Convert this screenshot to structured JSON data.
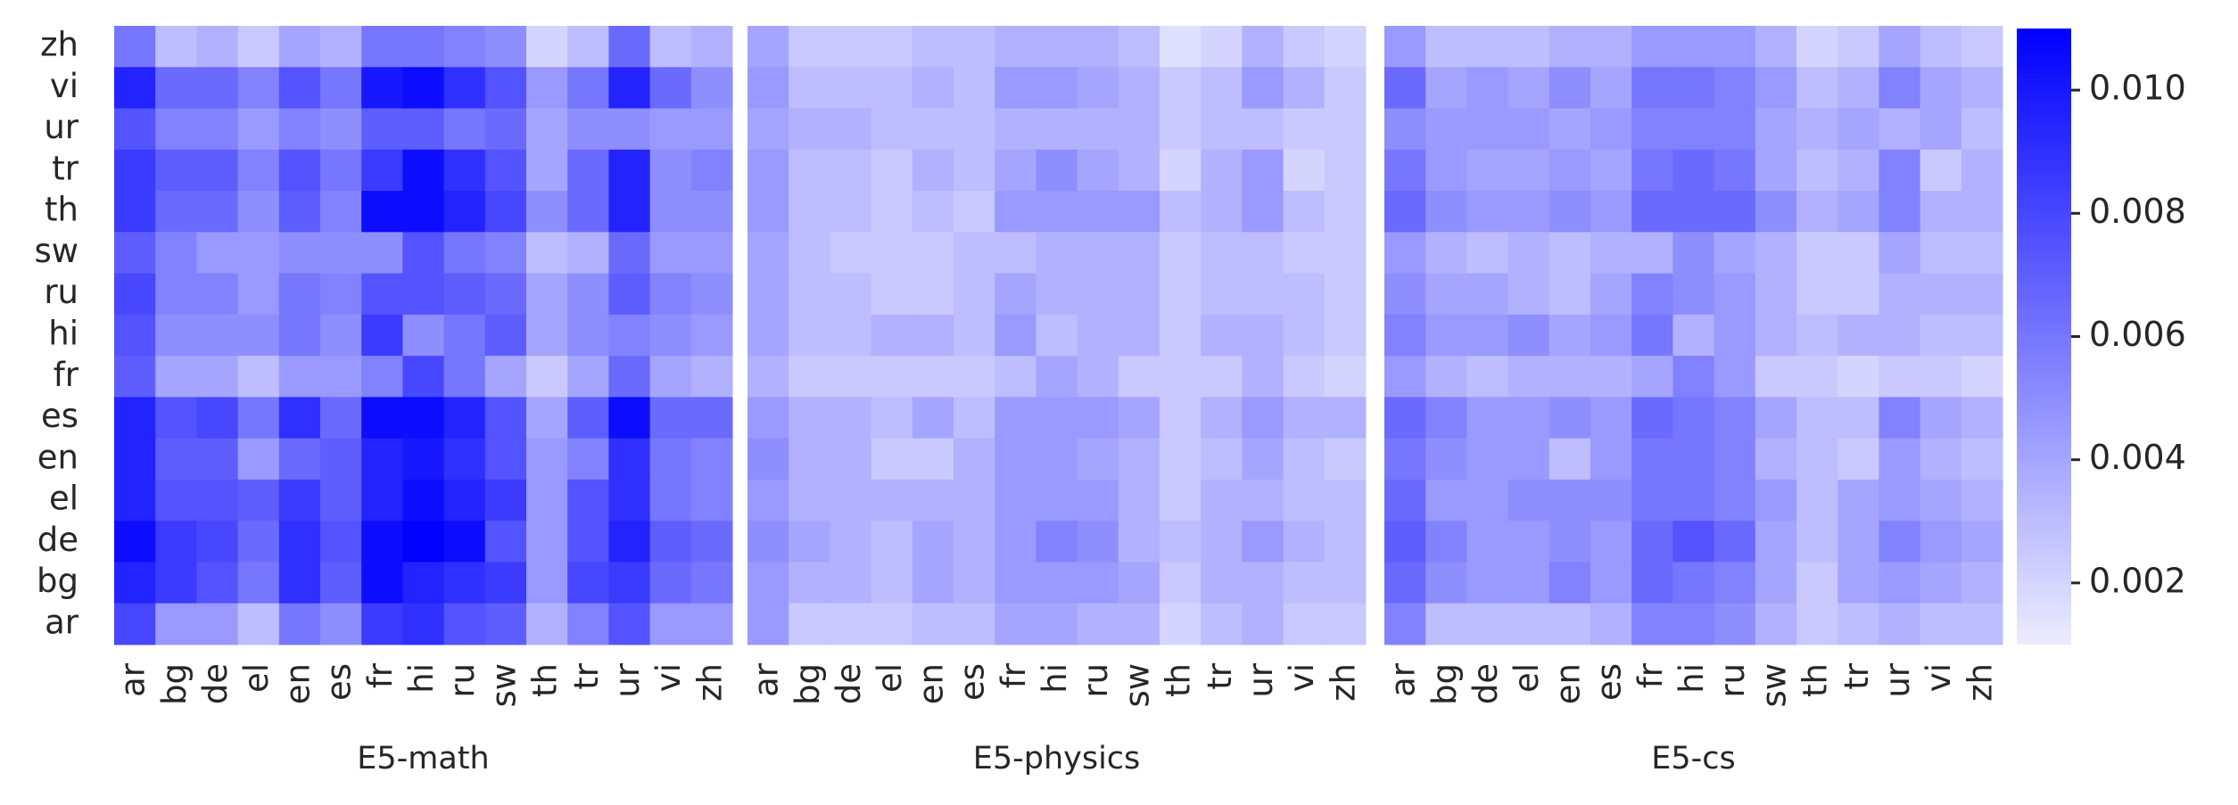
{
  "chart_data": [
    {
      "type": "heatmap",
      "x_label": "E5-math",
      "x": [
        "ar",
        "bg",
        "de",
        "el",
        "en",
        "es",
        "fr",
        "hi",
        "ru",
        "sw",
        "th",
        "tr",
        "ur",
        "vi",
        "zh"
      ],
      "y": [
        "zh",
        "vi",
        "ur",
        "tr",
        "th",
        "sw",
        "ru",
        "hi",
        "fr",
        "es",
        "en",
        "el",
        "de",
        "bg",
        "ar"
      ],
      "values": [
        [
          0.006,
          0.003,
          0.0035,
          0.0025,
          0.004,
          0.0035,
          0.006,
          0.006,
          0.0055,
          0.005,
          0.002,
          0.003,
          0.0065,
          0.003,
          0.0035
        ],
        [
          0.0095,
          0.0065,
          0.0065,
          0.0055,
          0.0075,
          0.006,
          0.01,
          0.0105,
          0.009,
          0.0075,
          0.0045,
          0.006,
          0.0095,
          0.0065,
          0.005
        ],
        [
          0.0075,
          0.0055,
          0.0055,
          0.0045,
          0.0055,
          0.005,
          0.007,
          0.007,
          0.006,
          0.0065,
          0.004,
          0.005,
          0.005,
          0.0045,
          0.0045
        ],
        [
          0.0085,
          0.007,
          0.007,
          0.0055,
          0.0075,
          0.006,
          0.0085,
          0.0105,
          0.009,
          0.0075,
          0.004,
          0.0065,
          0.0095,
          0.005,
          0.0055
        ],
        [
          0.0085,
          0.0065,
          0.0065,
          0.005,
          0.007,
          0.0055,
          0.0105,
          0.0105,
          0.0095,
          0.008,
          0.005,
          0.0065,
          0.0095,
          0.005,
          0.005
        ],
        [
          0.007,
          0.0055,
          0.0045,
          0.0045,
          0.005,
          0.005,
          0.005,
          0.0075,
          0.006,
          0.0055,
          0.003,
          0.0035,
          0.0065,
          0.0045,
          0.0045
        ],
        [
          0.008,
          0.0055,
          0.0055,
          0.0045,
          0.006,
          0.0055,
          0.0075,
          0.0075,
          0.007,
          0.0065,
          0.004,
          0.005,
          0.007,
          0.0055,
          0.005
        ],
        [
          0.0075,
          0.005,
          0.005,
          0.005,
          0.006,
          0.005,
          0.0085,
          0.005,
          0.006,
          0.007,
          0.004,
          0.005,
          0.0055,
          0.005,
          0.0045
        ],
        [
          0.007,
          0.004,
          0.004,
          0.003,
          0.0045,
          0.0045,
          0.0055,
          0.008,
          0.006,
          0.004,
          0.0025,
          0.004,
          0.0065,
          0.004,
          0.0035
        ],
        [
          0.0095,
          0.0075,
          0.008,
          0.006,
          0.009,
          0.0065,
          0.0105,
          0.0105,
          0.0095,
          0.0075,
          0.004,
          0.007,
          0.0105,
          0.0065,
          0.0065
        ],
        [
          0.0095,
          0.007,
          0.007,
          0.0045,
          0.0065,
          0.007,
          0.0095,
          0.01,
          0.009,
          0.0075,
          0.0045,
          0.0055,
          0.009,
          0.006,
          0.0055
        ],
        [
          0.0095,
          0.0075,
          0.0075,
          0.007,
          0.0085,
          0.007,
          0.0095,
          0.0105,
          0.0095,
          0.0085,
          0.0045,
          0.0075,
          0.009,
          0.006,
          0.0055
        ],
        [
          0.0105,
          0.0085,
          0.008,
          0.0065,
          0.009,
          0.0075,
          0.0105,
          0.011,
          0.0105,
          0.0075,
          0.0045,
          0.0075,
          0.0095,
          0.007,
          0.0065
        ],
        [
          0.0095,
          0.0085,
          0.0075,
          0.006,
          0.009,
          0.007,
          0.0105,
          0.0095,
          0.009,
          0.0085,
          0.0045,
          0.008,
          0.0085,
          0.0065,
          0.006
        ],
        [
          0.008,
          0.0045,
          0.0045,
          0.003,
          0.006,
          0.005,
          0.0085,
          0.009,
          0.0075,
          0.007,
          0.0035,
          0.0055,
          0.0075,
          0.0045,
          0.0045
        ]
      ]
    },
    {
      "type": "heatmap",
      "x_label": "E5-physics",
      "x": [
        "ar",
        "bg",
        "de",
        "el",
        "en",
        "es",
        "fr",
        "hi",
        "ru",
        "sw",
        "th",
        "tr",
        "ur",
        "vi",
        "zh"
      ],
      "y": [
        "zh",
        "vi",
        "ur",
        "tr",
        "th",
        "sw",
        "ru",
        "hi",
        "fr",
        "es",
        "en",
        "el",
        "de",
        "bg",
        "ar"
      ],
      "values": [
        [
          0.004,
          0.0025,
          0.0025,
          0.0025,
          0.003,
          0.003,
          0.0035,
          0.0035,
          0.0035,
          0.003,
          0.0015,
          0.002,
          0.0035,
          0.0025,
          0.002
        ],
        [
          0.0045,
          0.003,
          0.003,
          0.003,
          0.0035,
          0.003,
          0.0045,
          0.0045,
          0.004,
          0.0035,
          0.0025,
          0.003,
          0.0045,
          0.0035,
          0.0025
        ],
        [
          0.004,
          0.0035,
          0.0035,
          0.003,
          0.003,
          0.003,
          0.0035,
          0.0035,
          0.0035,
          0.0035,
          0.0025,
          0.003,
          0.003,
          0.0025,
          0.0025
        ],
        [
          0.0045,
          0.003,
          0.003,
          0.0025,
          0.0035,
          0.003,
          0.004,
          0.005,
          0.004,
          0.0035,
          0.002,
          0.0035,
          0.0045,
          0.002,
          0.0025
        ],
        [
          0.0045,
          0.003,
          0.003,
          0.0025,
          0.003,
          0.0025,
          0.0045,
          0.0045,
          0.0045,
          0.0045,
          0.003,
          0.0035,
          0.0045,
          0.003,
          0.0025
        ],
        [
          0.004,
          0.003,
          0.0025,
          0.0025,
          0.0025,
          0.003,
          0.003,
          0.0035,
          0.0035,
          0.0035,
          0.0025,
          0.003,
          0.003,
          0.0025,
          0.0025
        ],
        [
          0.004,
          0.003,
          0.003,
          0.0025,
          0.0025,
          0.003,
          0.004,
          0.0035,
          0.0035,
          0.0035,
          0.0025,
          0.003,
          0.003,
          0.003,
          0.0025
        ],
        [
          0.004,
          0.003,
          0.003,
          0.0035,
          0.0035,
          0.003,
          0.0045,
          0.003,
          0.0035,
          0.0035,
          0.0025,
          0.0035,
          0.0035,
          0.003,
          0.0025
        ],
        [
          0.0035,
          0.0025,
          0.0025,
          0.0025,
          0.0025,
          0.0025,
          0.003,
          0.004,
          0.0035,
          0.0025,
          0.0025,
          0.0025,
          0.0035,
          0.0025,
          0.002
        ],
        [
          0.0045,
          0.0035,
          0.0035,
          0.003,
          0.004,
          0.003,
          0.0045,
          0.0045,
          0.0045,
          0.004,
          0.0025,
          0.0035,
          0.0045,
          0.0035,
          0.0035
        ],
        [
          0.005,
          0.0035,
          0.0035,
          0.0025,
          0.0025,
          0.0035,
          0.0045,
          0.0045,
          0.004,
          0.0035,
          0.0025,
          0.003,
          0.004,
          0.003,
          0.0025
        ],
        [
          0.0045,
          0.0035,
          0.0035,
          0.0035,
          0.0035,
          0.0035,
          0.0045,
          0.0045,
          0.0045,
          0.0035,
          0.0025,
          0.0035,
          0.0035,
          0.003,
          0.003
        ],
        [
          0.005,
          0.004,
          0.0035,
          0.003,
          0.004,
          0.0035,
          0.0045,
          0.0055,
          0.005,
          0.0035,
          0.003,
          0.0035,
          0.0045,
          0.0035,
          0.003
        ],
        [
          0.0045,
          0.0035,
          0.0035,
          0.003,
          0.004,
          0.0035,
          0.0045,
          0.0045,
          0.0045,
          0.004,
          0.0025,
          0.0035,
          0.0035,
          0.003,
          0.003
        ],
        [
          0.0045,
          0.0025,
          0.0025,
          0.0025,
          0.003,
          0.003,
          0.004,
          0.004,
          0.0035,
          0.0035,
          0.002,
          0.003,
          0.0035,
          0.0025,
          0.0025
        ]
      ]
    },
    {
      "type": "heatmap",
      "x_label": "E5-cs",
      "x": [
        "ar",
        "bg",
        "de",
        "el",
        "en",
        "es",
        "fr",
        "hi",
        "ru",
        "sw",
        "th",
        "tr",
        "ur",
        "vi",
        "zh"
      ],
      "y": [
        "zh",
        "vi",
        "ur",
        "tr",
        "th",
        "sw",
        "ru",
        "hi",
        "fr",
        "es",
        "en",
        "el",
        "de",
        "bg",
        "ar"
      ],
      "values": [
        [
          0.0045,
          0.003,
          0.003,
          0.003,
          0.0035,
          0.0035,
          0.0045,
          0.0045,
          0.0045,
          0.0035,
          0.002,
          0.0025,
          0.004,
          0.003,
          0.0025
        ],
        [
          0.0065,
          0.004,
          0.0045,
          0.004,
          0.005,
          0.004,
          0.006,
          0.006,
          0.0055,
          0.0045,
          0.003,
          0.0035,
          0.0055,
          0.004,
          0.0035
        ],
        [
          0.005,
          0.0045,
          0.0045,
          0.0045,
          0.004,
          0.0045,
          0.0055,
          0.0055,
          0.0055,
          0.004,
          0.0035,
          0.004,
          0.0035,
          0.004,
          0.003
        ],
        [
          0.006,
          0.0045,
          0.004,
          0.004,
          0.0045,
          0.004,
          0.006,
          0.0065,
          0.006,
          0.004,
          0.003,
          0.0035,
          0.0055,
          0.0025,
          0.0035
        ],
        [
          0.0065,
          0.005,
          0.0045,
          0.0045,
          0.005,
          0.0045,
          0.0065,
          0.0065,
          0.0065,
          0.005,
          0.0035,
          0.004,
          0.0055,
          0.0035,
          0.0035
        ],
        [
          0.0045,
          0.0035,
          0.003,
          0.0035,
          0.003,
          0.0035,
          0.0035,
          0.005,
          0.004,
          0.0035,
          0.0025,
          0.0025,
          0.004,
          0.003,
          0.003
        ],
        [
          0.005,
          0.004,
          0.004,
          0.0035,
          0.003,
          0.004,
          0.0055,
          0.005,
          0.0045,
          0.0035,
          0.0025,
          0.0025,
          0.0035,
          0.0035,
          0.0035
        ],
        [
          0.0055,
          0.0045,
          0.0045,
          0.005,
          0.004,
          0.0045,
          0.006,
          0.0035,
          0.0045,
          0.0035,
          0.003,
          0.0035,
          0.0035,
          0.003,
          0.003
        ],
        [
          0.0045,
          0.0035,
          0.003,
          0.0035,
          0.0035,
          0.0035,
          0.004,
          0.0055,
          0.0045,
          0.0025,
          0.0025,
          0.002,
          0.0025,
          0.0025,
          0.002
        ],
        [
          0.0065,
          0.0055,
          0.0045,
          0.0045,
          0.005,
          0.0045,
          0.0065,
          0.006,
          0.0055,
          0.004,
          0.003,
          0.003,
          0.0055,
          0.004,
          0.0035
        ],
        [
          0.006,
          0.005,
          0.0045,
          0.0045,
          0.003,
          0.0045,
          0.006,
          0.006,
          0.0055,
          0.0035,
          0.003,
          0.0025,
          0.0045,
          0.0035,
          0.003
        ],
        [
          0.0065,
          0.0045,
          0.0045,
          0.005,
          0.005,
          0.005,
          0.006,
          0.006,
          0.0055,
          0.0045,
          0.003,
          0.004,
          0.0045,
          0.004,
          0.0035
        ],
        [
          0.007,
          0.0055,
          0.0045,
          0.0045,
          0.005,
          0.0045,
          0.0065,
          0.0075,
          0.0065,
          0.004,
          0.003,
          0.004,
          0.0055,
          0.0045,
          0.004
        ],
        [
          0.0065,
          0.005,
          0.0045,
          0.0045,
          0.0055,
          0.0045,
          0.0065,
          0.006,
          0.0055,
          0.004,
          0.0025,
          0.004,
          0.0045,
          0.004,
          0.0035
        ],
        [
          0.0055,
          0.003,
          0.003,
          0.003,
          0.003,
          0.0035,
          0.0055,
          0.0055,
          0.005,
          0.0035,
          0.0025,
          0.003,
          0.0035,
          0.003,
          0.003
        ]
      ]
    }
  ],
  "colorbar": {
    "zlim": [
      0.001,
      0.011
    ],
    "zticks": [
      0.002,
      0.004,
      0.006,
      0.008,
      {
        "value": 0.01,
        "label": "0.010"
      }
    ],
    "colors": [
      "#ececff",
      "#0000ff"
    ]
  }
}
